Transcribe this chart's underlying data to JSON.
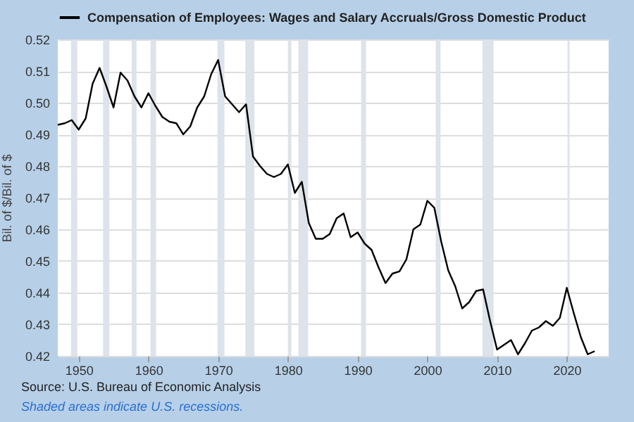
{
  "chart_data": {
    "type": "line",
    "x": [
      1947,
      1948,
      1949,
      1950,
      1951,
      1952,
      1953,
      1954,
      1955,
      1956,
      1957,
      1958,
      1959,
      1960,
      1961,
      1962,
      1963,
      1964,
      1965,
      1966,
      1967,
      1968,
      1969,
      1970,
      1971,
      1972,
      1973,
      1974,
      1975,
      1976,
      1977,
      1978,
      1979,
      1980,
      1981,
      1982,
      1983,
      1984,
      1985,
      1986,
      1987,
      1988,
      1989,
      1990,
      1991,
      1992,
      1993,
      1994,
      1995,
      1996,
      1997,
      1998,
      1999,
      2000,
      2001,
      2002,
      2003,
      2004,
      2005,
      2006,
      2007,
      2008,
      2009,
      2010,
      2011,
      2012,
      2013,
      2014,
      2015,
      2016,
      2017,
      2018,
      2019,
      2020,
      2021,
      2022,
      2023,
      2024
    ],
    "series": [
      {
        "name": "Compensation of Employees: Wages and Salary Accruals/Gross Domestic Product",
        "color": "#000000",
        "values": [
          0.493,
          0.4935,
          0.4945,
          0.4915,
          0.495,
          0.506,
          0.511,
          0.505,
          0.4985,
          0.5095,
          0.507,
          0.502,
          0.4985,
          0.503,
          0.499,
          0.4955,
          0.494,
          0.4935,
          0.49,
          0.4925,
          0.4985,
          0.502,
          0.509,
          0.5135,
          0.502,
          0.4995,
          0.497,
          0.4995,
          0.483,
          0.48,
          0.4775,
          0.4765,
          0.4775,
          0.4805,
          0.4715,
          0.475,
          0.462,
          0.457,
          0.457,
          0.4585,
          0.4635,
          0.465,
          0.4575,
          0.459,
          0.4555,
          0.4535,
          0.448,
          0.443,
          0.446,
          0.4467,
          0.4505,
          0.46,
          0.4615,
          0.469,
          0.4668,
          0.456,
          0.447,
          0.442,
          0.435,
          0.437,
          0.4405,
          0.441,
          0.431,
          0.422,
          0.4235,
          0.425,
          0.4205,
          0.424,
          0.428,
          0.429,
          0.431,
          0.4295,
          0.432,
          0.4415,
          0.4335,
          0.426,
          0.4205,
          0.4215
        ]
      }
    ],
    "ylabel": "Bil. of $/Bil. of $",
    "xlim": [
      1947,
      2026
    ],
    "xticks": [
      1950,
      1960,
      1970,
      1980,
      1990,
      2000,
      2010,
      2020
    ],
    "ylim": [
      0.42,
      0.52
    ],
    "yticks": [
      0.42,
      0.43,
      0.44,
      0.45,
      0.46,
      0.47,
      0.48,
      0.49,
      {
        "value": 0.5,
        "label": "0.50"
      },
      0.51,
      0.52
    ],
    "grid": "y",
    "legend": "top left",
    "line_style": "solid",
    "marker": "none",
    "bands": [
      {
        "axis": "x",
        "from": 1948.9,
        "to": 1949.8,
        "color": "#dde3ea"
      },
      {
        "axis": "x",
        "from": 1953.5,
        "to": 1954.4,
        "color": "#dde3ea"
      },
      {
        "axis": "x",
        "from": 1957.6,
        "to": 1958.3,
        "color": "#dde3ea"
      },
      {
        "axis": "x",
        "from": 1960.3,
        "to": 1961.1,
        "color": "#dde3ea"
      },
      {
        "axis": "x",
        "from": 1969.9,
        "to": 1970.9,
        "color": "#dde3ea"
      },
      {
        "axis": "x",
        "from": 1973.9,
        "to": 1975.2,
        "color": "#dde3ea"
      },
      {
        "axis": "x",
        "from": 1980.0,
        "to": 1980.5,
        "color": "#dde3ea"
      },
      {
        "axis": "x",
        "from": 1981.5,
        "to": 1982.9,
        "color": "#dde3ea"
      },
      {
        "axis": "x",
        "from": 1990.5,
        "to": 1991.2,
        "color": "#dde3ea"
      },
      {
        "axis": "x",
        "from": 2001.2,
        "to": 2001.9,
        "color": "#dde3ea"
      },
      {
        "axis": "x",
        "from": 2007.9,
        "to": 2009.5,
        "color": "#dde3ea"
      },
      {
        "axis": "x",
        "from": 2020.1,
        "to": 2020.4,
        "color": "#dde3ea"
      }
    ],
    "annotations": [
      "Source: U.S. Bureau of Economic Analysis",
      "Shaded areas indicate U.S. recessions."
    ]
  }
}
